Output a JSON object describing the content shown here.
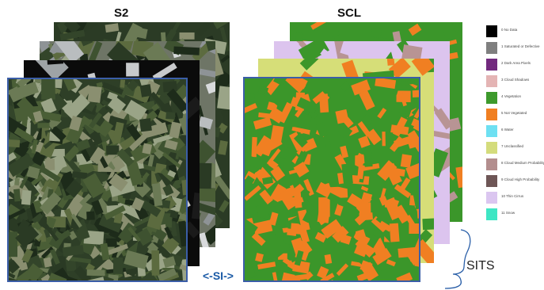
{
  "s2": {
    "title": "S2"
  },
  "scl": {
    "title": "SCL"
  },
  "si_label": "<-SI->",
  "sits_label": "SITS",
  "colors": {
    "frame_blue": "#3b5ea8",
    "brace": "#2a5fa8",
    "s2_palette": [
      "#1d2b1a",
      "#33452a",
      "#4a5e36",
      "#6b7a55",
      "#8a8f70",
      "#5c6b3f",
      "#2a3a24",
      "#9aa487",
      "#3e5230"
    ],
    "s2_cloud": [
      "#d8dadc",
      "#b9bdbf",
      "#8e9396"
    ],
    "scl_veg": "#3b962a",
    "scl_orange": "#f07f22",
    "scl_lilac": "#dcc4ee",
    "scl_mauve": "#b89494",
    "scl_lime": "#d6de78"
  },
  "legend": [
    {
      "label": "0 No Data",
      "color": "#000000"
    },
    {
      "label": "1 Saturated or Defective",
      "color": "#7f7f7f"
    },
    {
      "label": "2 Dark Area Pixels",
      "color": "#722a7e"
    },
    {
      "label": "3 Cloud Shadows",
      "color": "#e4b4b4"
    },
    {
      "label": "4 Vegetation",
      "color": "#3d9a2c"
    },
    {
      "label": "5 Not Vegetated",
      "color": "#f07f22"
    },
    {
      "label": "6 Water",
      "color": "#6ee0f2"
    },
    {
      "label": "7 Unclassified",
      "color": "#d4dc7c"
    },
    {
      "label": "8 Cloud Medium Probability",
      "color": "#b38e8e"
    },
    {
      "label": "9 Cloud High Probability",
      "color": "#6e5656"
    },
    {
      "label": "10 Thin Cirrus",
      "color": "#dbc6f0"
    },
    {
      "label": "11 Snow",
      "color": "#3ee6c4"
    }
  ]
}
